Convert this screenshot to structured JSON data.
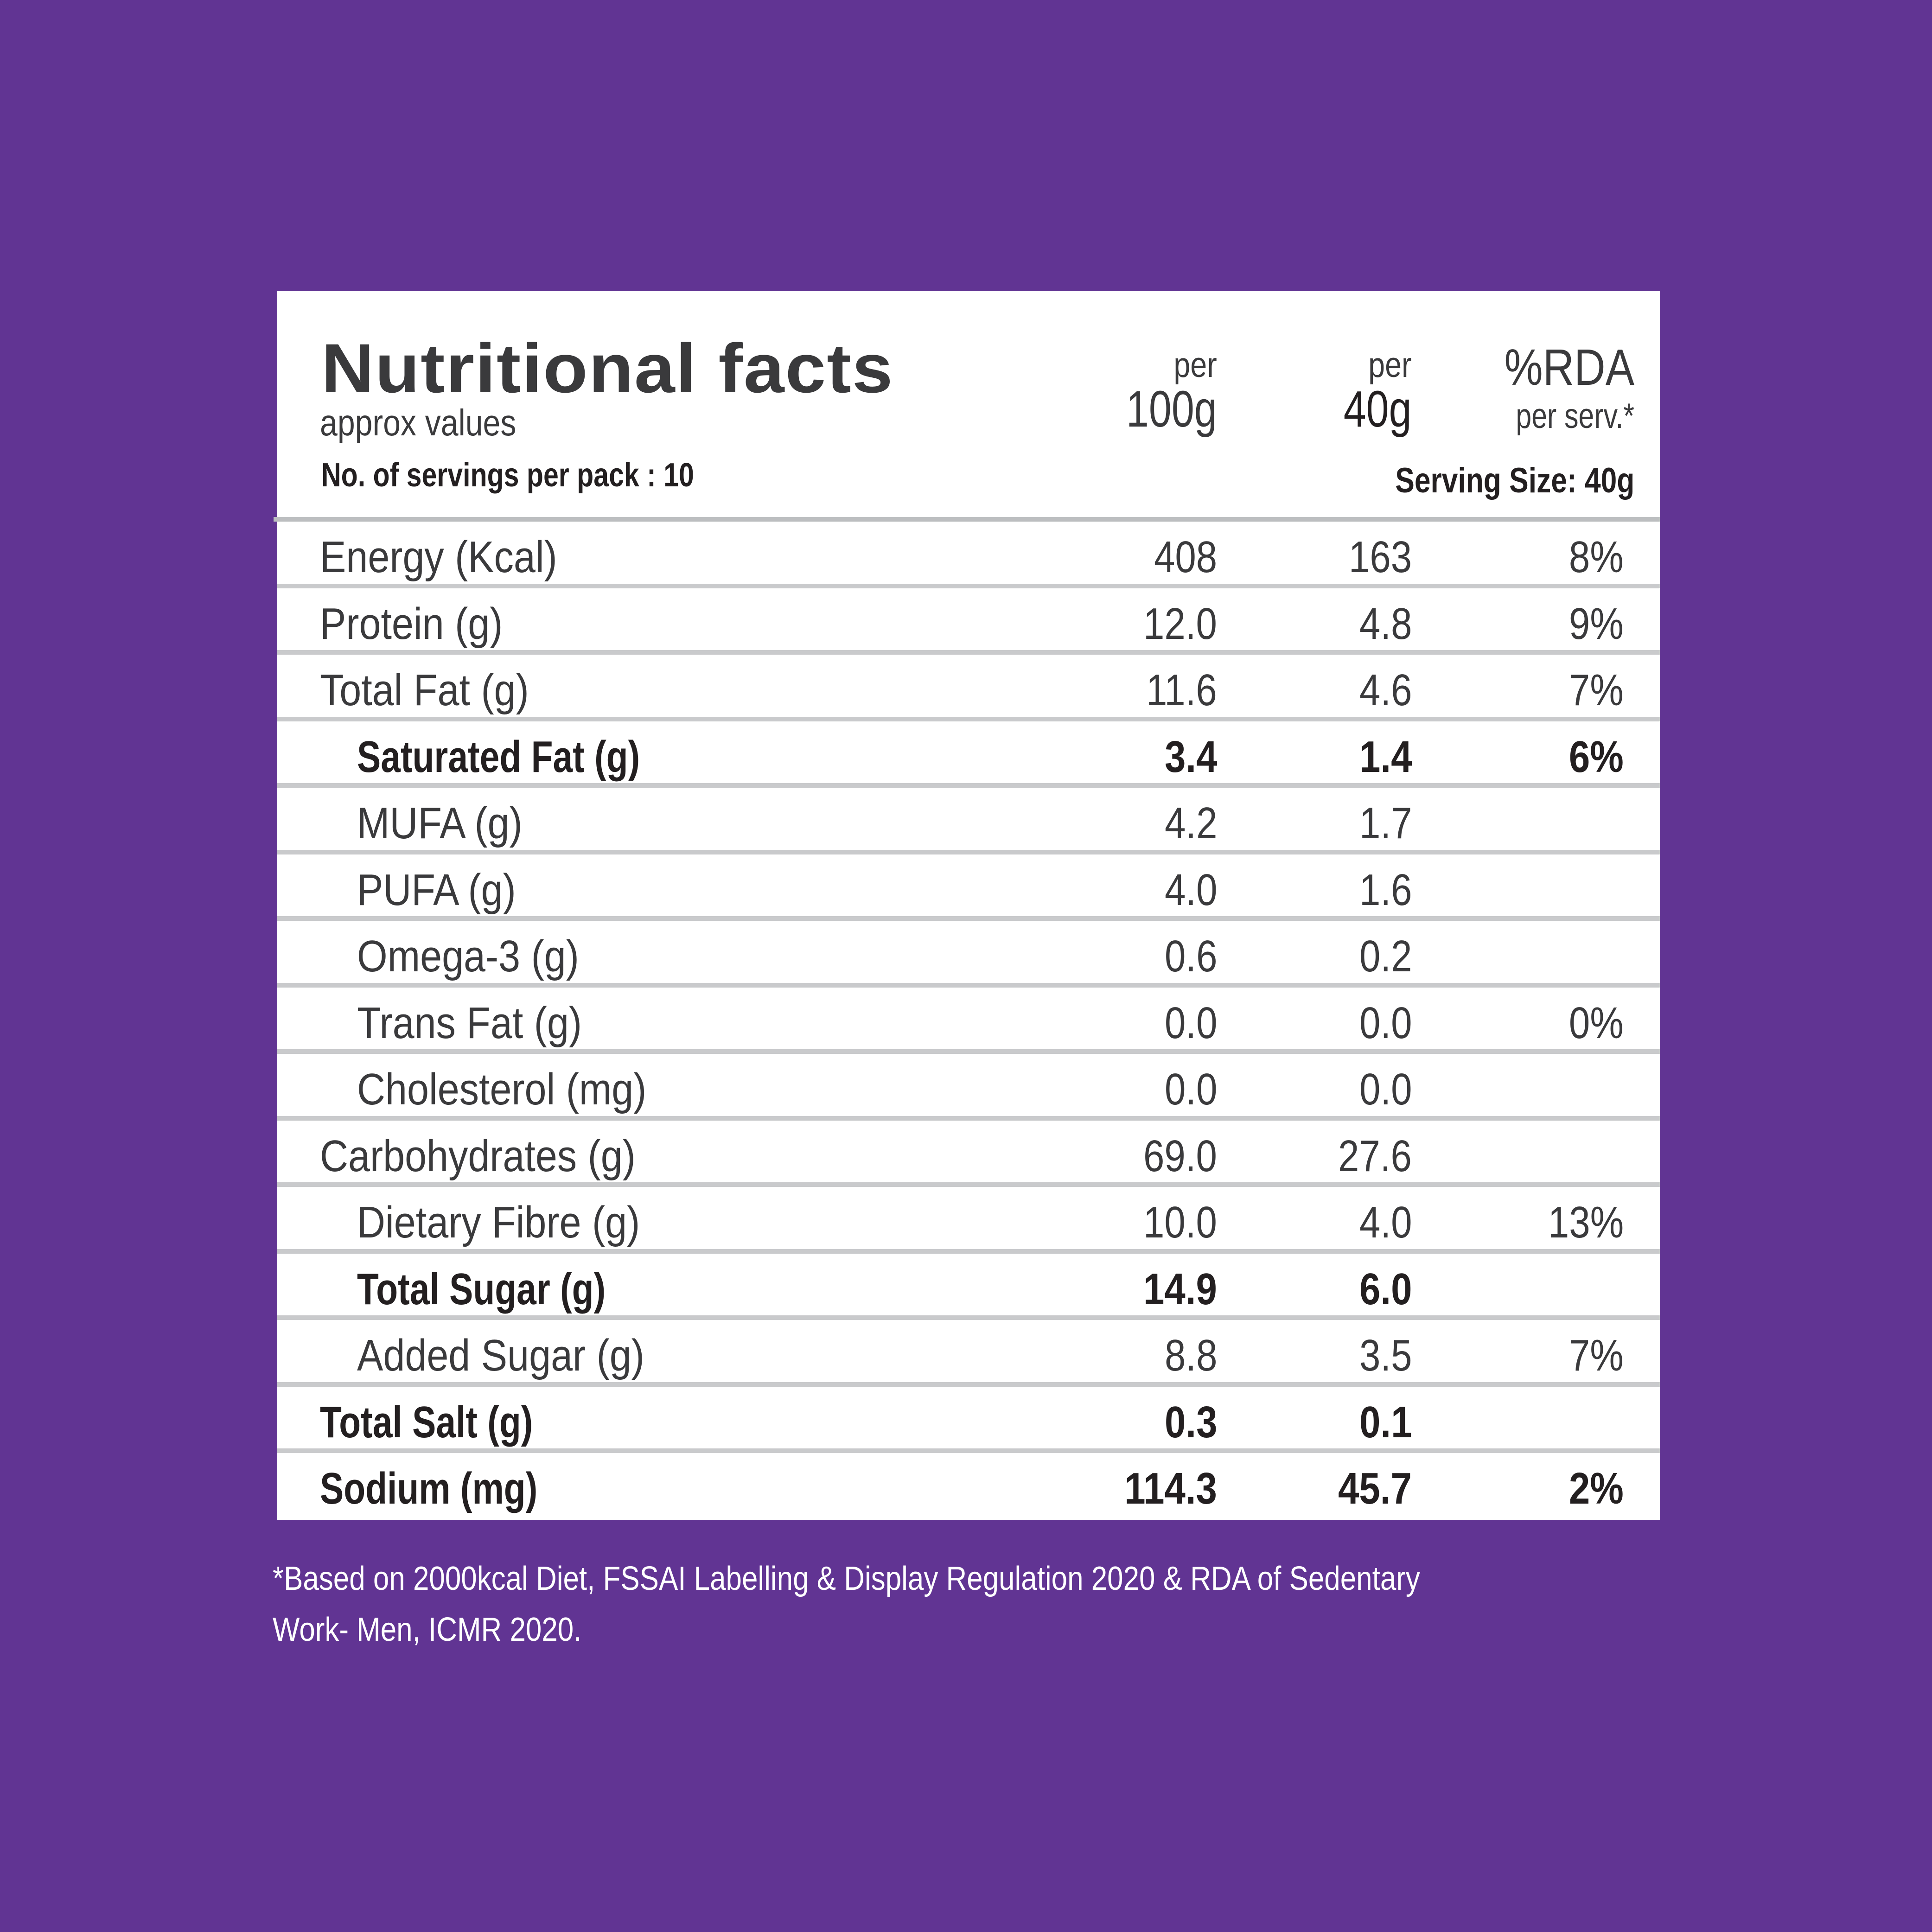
{
  "colors": {
    "background": "#613493",
    "card": "#ffffff",
    "text": "#3a3a3c",
    "divider": "#c9cacc"
  },
  "header": {
    "title": "Nutritional facts",
    "subtitle": "approx values",
    "servings_per_pack": "No. of servings per pack : 10",
    "columns": [
      {
        "line1": "per",
        "line2": "100g"
      },
      {
        "line1": "per",
        "line2": "40g"
      },
      {
        "line1": "%RDA",
        "line2": "per serv.*"
      }
    ],
    "serving_size": "Serving Size: 40g"
  },
  "rows": [
    {
      "label": "Energy (Kcal)",
      "per100g": "408",
      "per40g": "163",
      "rda": "8%"
    },
    {
      "label": "Protein (g)",
      "per100g": "12.0",
      "per40g": "4.8",
      "rda": "9%"
    },
    {
      "label": "Total Fat (g)",
      "per100g": "11.6",
      "per40g": "4.6",
      "rda": "7%"
    },
    {
      "label": "Saturated Fat (g)",
      "per100g": "3.4",
      "per40g": "1.4",
      "rda": "6%"
    },
    {
      "label": "MUFA (g)",
      "per100g": "4.2",
      "per40g": "1.7",
      "rda": ""
    },
    {
      "label": "PUFA (g)",
      "per100g": "4.0",
      "per40g": "1.6",
      "rda": ""
    },
    {
      "label": "Omega-3 (g)",
      "per100g": "0.6",
      "per40g": "0.2",
      "rda": ""
    },
    {
      "label": "Trans Fat (g)",
      "per100g": "0.0",
      "per40g": "0.0",
      "rda": "0%"
    },
    {
      "label": "Cholesterol (mg)",
      "per100g": "0.0",
      "per40g": "0.0",
      "rda": ""
    },
    {
      "label": "Carbohydrates (g)",
      "per100g": "69.0",
      "per40g": "27.6",
      "rda": ""
    },
    {
      "label": "Dietary Fibre (g)",
      "per100g": "10.0",
      "per40g": "4.0",
      "rda": "13%"
    },
    {
      "label": "Total Sugar (g)",
      "per100g": "14.9",
      "per40g": "6.0",
      "rda": ""
    },
    {
      "label": "Added Sugar (g)",
      "per100g": "8.8",
      "per40g": "3.5",
      "rda": "7%"
    },
    {
      "label": "Total Salt (g)",
      "per100g": "0.3",
      "per40g": "0.1",
      "rda": ""
    },
    {
      "label": "Sodium (mg)",
      "per100g": "114.3",
      "per40g": "45.7",
      "rda": "2%"
    }
  ],
  "footnote": {
    "line1": "*Based on 2000kcal Diet, FSSAI Labelling & Display Regulation 2020 & RDA of Sedentary",
    "line2": "Work- Men, ICMR 2020."
  }
}
